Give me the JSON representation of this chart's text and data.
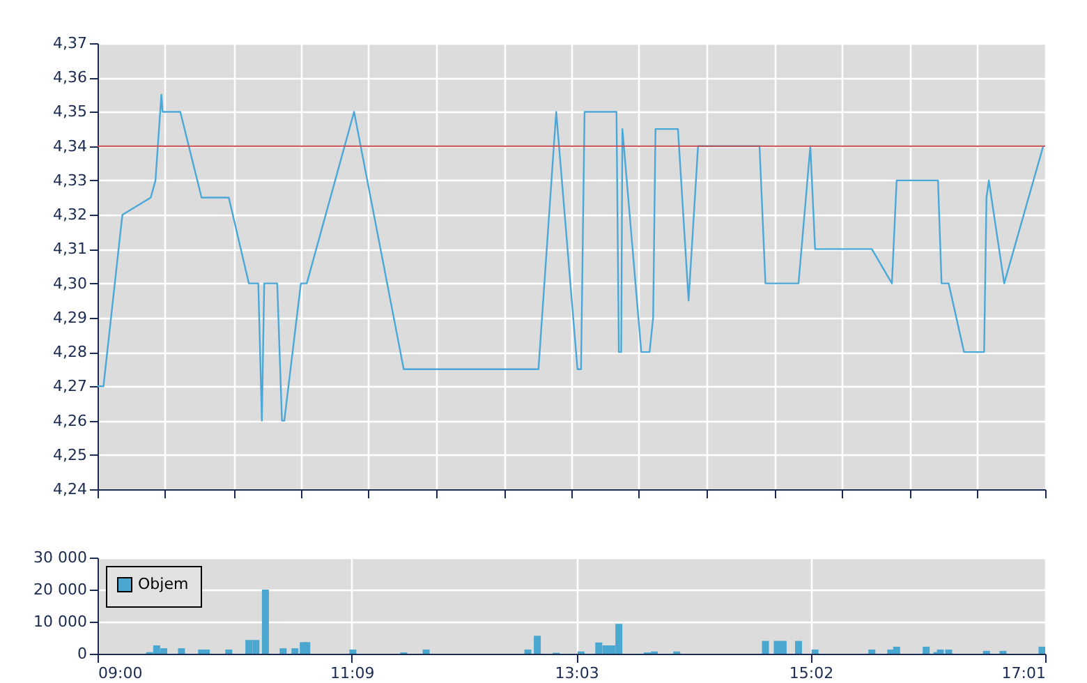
{
  "chart_data": [
    {
      "type": "line",
      "xlim": [
        9,
        17.0167
      ],
      "xticks": [
        {
          "value": 9,
          "label": null
        },
        {
          "value": 9.57,
          "label": null
        },
        {
          "value": 10.15,
          "label": null
        },
        {
          "value": 10.72,
          "label": null
        },
        {
          "value": 11.29,
          "label": null
        },
        {
          "value": 11.86,
          "label": null
        },
        {
          "value": 12.44,
          "label": null
        },
        {
          "value": 13.01,
          "label": null
        },
        {
          "value": 13.58,
          "label": null
        },
        {
          "value": 14.15,
          "label": null
        },
        {
          "value": 14.73,
          "label": null
        },
        {
          "value": 15.3,
          "label": null
        },
        {
          "value": 15.87,
          "label": null
        },
        {
          "value": 16.44,
          "label": null
        },
        {
          "value": 17.0167,
          "label": null
        }
      ],
      "ylim": [
        4.24,
        4.37
      ],
      "yticks": [
        {
          "value": 4.24,
          "label": "4,24"
        },
        {
          "value": 4.25,
          "label": "4,25"
        },
        {
          "value": 4.26,
          "label": "4,26"
        },
        {
          "value": 4.27,
          "label": "4,27"
        },
        {
          "value": 4.28,
          "label": "4,28"
        },
        {
          "value": 4.29,
          "label": "4,29"
        },
        {
          "value": 4.3,
          "label": "4,30"
        },
        {
          "value": 4.31,
          "label": "4,31"
        },
        {
          "value": 4.32,
          "label": "4,32"
        },
        {
          "value": 4.33,
          "label": "4,33"
        },
        {
          "value": 4.34,
          "label": "4,34"
        },
        {
          "value": 4.35,
          "label": "4,35"
        },
        {
          "value": 4.36,
          "label": "4,36"
        },
        {
          "value": 4.37,
          "label": "4,37"
        }
      ],
      "tick_labels": "y",
      "grid": true,
      "x": [
        9.0,
        9.05,
        9.21,
        9.45,
        9.49,
        9.54,
        9.55,
        9.7,
        9.88,
        10.11,
        10.28,
        10.36,
        10.39,
        10.41,
        10.52,
        10.56,
        10.58,
        10.72,
        10.77,
        11.17,
        11.59,
        12.73,
        12.88,
        13.06,
        13.09,
        13.12,
        13.39,
        13.41,
        13.43,
        13.44,
        13.6,
        13.67,
        13.7,
        13.72,
        13.91,
        14.0,
        14.08,
        14.6,
        14.65,
        14.93,
        15.03,
        15.07,
        15.55,
        15.72,
        15.76,
        16.11,
        16.14,
        16.2,
        16.33,
        16.5,
        16.52,
        16.54,
        16.67,
        17.0
      ],
      "series": [
        {
          "color": "#4aa8d8",
          "values": [
            4.27,
            4.27,
            4.32,
            4.325,
            4.33,
            4.355,
            4.35,
            4.35,
            4.325,
            4.325,
            4.3,
            4.3,
            4.26,
            4.3,
            4.3,
            4.26,
            4.26,
            4.3,
            4.3,
            4.35,
            4.275,
            4.275,
            4.35,
            4.275,
            4.275,
            4.35,
            4.35,
            4.28,
            4.28,
            4.345,
            4.28,
            4.28,
            4.29,
            4.345,
            4.345,
            4.295,
            4.34,
            4.34,
            4.3,
            4.3,
            4.34,
            4.31,
            4.31,
            4.3,
            4.33,
            4.33,
            4.3,
            4.3,
            4.28,
            4.28,
            4.325,
            4.33,
            4.3,
            4.34
          ]
        }
      ],
      "ref_lines": [
        {
          "axis": "y",
          "value": 4.34,
          "color": "#c85050"
        }
      ]
    },
    {
      "type": "bar",
      "xlim": [
        9,
        17.0167
      ],
      "xticks": [
        {
          "value": 9,
          "label": "09:00"
        },
        {
          "value": 11.15,
          "label": "11:09"
        },
        {
          "value": 13.05,
          "label": "13:03"
        },
        {
          "value": 15.0333,
          "label": "15:02"
        },
        {
          "value": 17.0167,
          "label": "17:01"
        }
      ],
      "ylim": [
        0,
        30000
      ],
      "yticks": [
        {
          "value": 0,
          "label": "0"
        },
        {
          "value": 10000,
          "label": "10 000"
        },
        {
          "value": 20000,
          "label": "20 000"
        },
        {
          "value": 30000,
          "label": "30 000"
        }
      ],
      "grid": true,
      "legend": "top left",
      "x": [
        9.44,
        9.5,
        9.56,
        9.71,
        9.88,
        9.92,
        10.11,
        10.28,
        10.34,
        10.42,
        10.57,
        10.67,
        10.74,
        10.77,
        11.16,
        11.59,
        11.78,
        12.64,
        12.72,
        12.88,
        13.09,
        13.24,
        13.3,
        13.35,
        13.41,
        13.65,
        13.71,
        13.9,
        14.65,
        14.75,
        14.8,
        14.93,
        15.07,
        15.55,
        15.71,
        15.76,
        16.01,
        16.1,
        16.13,
        16.2,
        16.52,
        16.66,
        16.99
      ],
      "series": [
        {
          "name": "Objem",
          "color": "#4aa8d0",
          "values": [
            500,
            2600,
            1700,
            1700,
            1300,
            1300,
            1300,
            4300,
            4300,
            20000,
            1700,
            1700,
            3600,
            3600,
            1300,
            400,
            1300,
            1300,
            5600,
            300,
            700,
            3500,
            2600,
            2600,
            9300,
            400,
            700,
            700,
            4000,
            4000,
            4000,
            4000,
            1300,
            1300,
            1300,
            2200,
            2200,
            500,
            1300,
            1300,
            900,
            900,
            2200
          ]
        }
      ]
    }
  ]
}
